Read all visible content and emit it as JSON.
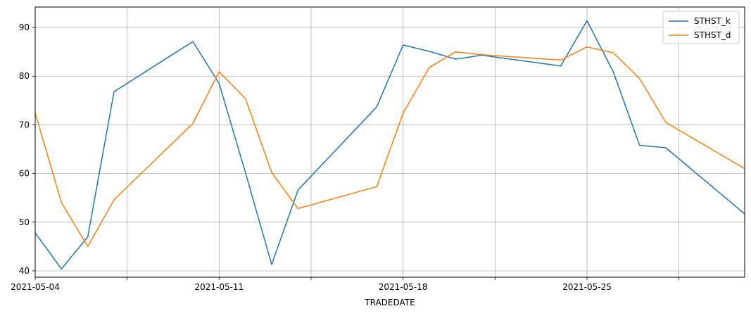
{
  "chart_data": {
    "type": "line",
    "title": "",
    "xlabel": "TRADEDATE",
    "ylabel": "",
    "x": [
      "2021-05-04",
      "2021-05-05",
      "2021-05-06",
      "2021-05-07",
      "2021-05-10",
      "2021-05-11",
      "2021-05-12",
      "2021-05-13",
      "2021-05-14",
      "2021-05-17",
      "2021-05-18",
      "2021-05-19",
      "2021-05-20",
      "2021-05-21",
      "2021-05-24",
      "2021-05-25",
      "2021-05-26",
      "2021-05-27",
      "2021-05-28",
      "2021-05-31"
    ],
    "x_tick_labels": [
      "2021-05-04",
      "2021-05-11",
      "2021-05-18",
      "2021-05-25"
    ],
    "ylim": [
      38.7,
      94.2
    ],
    "y_ticks": [
      40,
      50,
      60,
      70,
      80,
      90
    ],
    "grid": true,
    "legend_position": "top-right",
    "series": [
      {
        "name": "STHST_k",
        "color": "#1f77b4",
        "values": [
          47.8,
          40.4,
          47.0,
          76.8,
          87.1,
          78.5,
          60.2,
          41.3,
          56.6,
          73.7,
          86.4,
          85.1,
          83.5,
          84.3,
          82.1,
          91.4,
          80.9,
          65.8,
          65.3,
          51.7
        ]
      },
      {
        "name": "STHST_d",
        "color": "#ff7f0e",
        "values": [
          72.4,
          54.0,
          45.0,
          54.6,
          70.3,
          80.9,
          75.4,
          60.2,
          52.8,
          57.3,
          72.4,
          81.8,
          85.0,
          84.4,
          83.3,
          86.0,
          84.8,
          79.5,
          70.5,
          61.0
        ]
      }
    ]
  }
}
